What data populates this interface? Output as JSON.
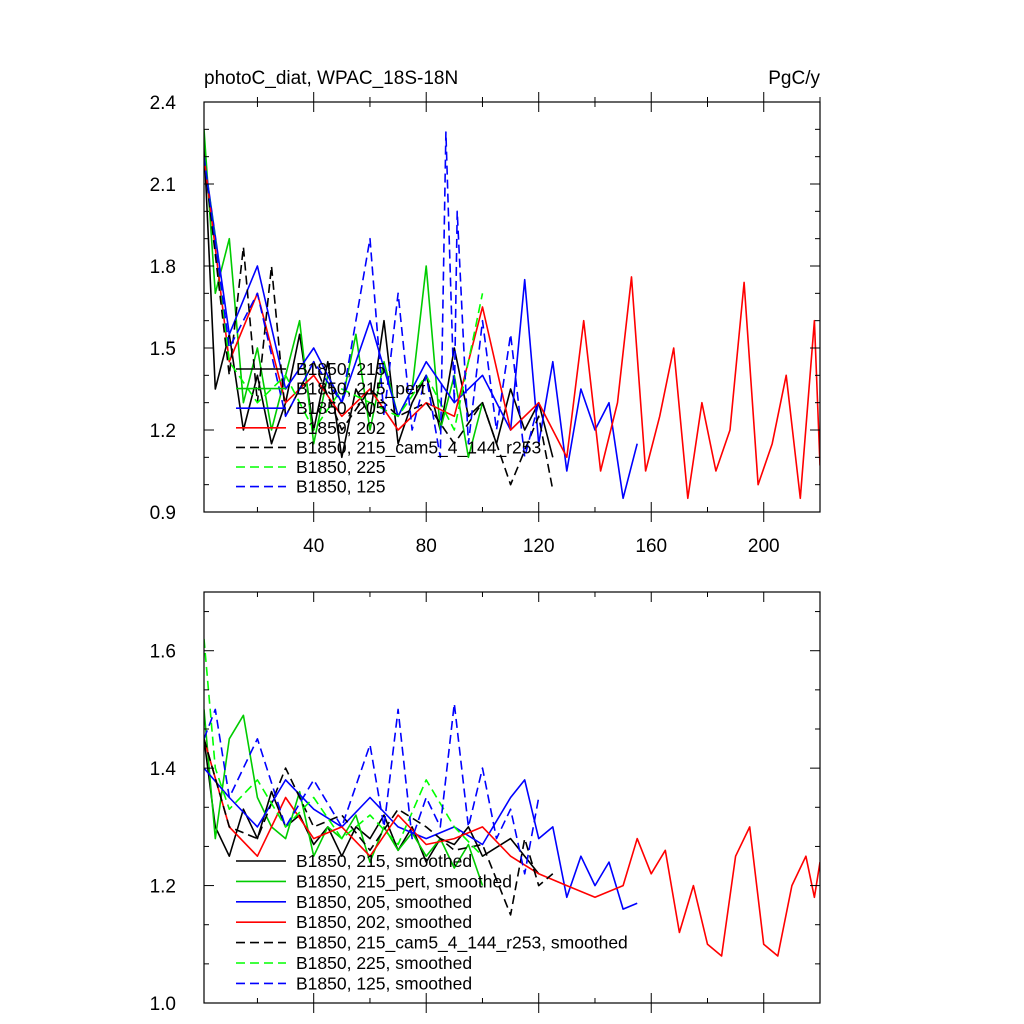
{
  "figure": {
    "title_left": "photoC_diat, WPAC_18S-18N",
    "title_right": "PgC/y"
  },
  "chart_data": [
    {
      "type": "line",
      "panel": "top",
      "title": "photoC_diat, WPAC_18S-18N",
      "units": "PgC/y",
      "xlim": [
        1,
        220
      ],
      "ylim": [
        0.9,
        2.4
      ],
      "yticks": [
        0.9,
        1.2,
        1.5,
        1.8,
        2.1,
        2.4
      ],
      "ytick_labels": [
        "0.9",
        "1.2",
        "1.5",
        "1.8",
        "2.1",
        "2.4"
      ],
      "xticks": [
        40,
        80,
        120,
        160,
        200
      ],
      "xtick_labels": [
        "40",
        "80",
        "120",
        "160",
        "200"
      ],
      "legend_position": "lower-left",
      "series": [
        {
          "name": "B1850, 215",
          "color": "#000000",
          "dash": "solid",
          "x": [
            1,
            5,
            10,
            15,
            20,
            25,
            30,
            35,
            40,
            45,
            50,
            55,
            60,
            65,
            70,
            75,
            80,
            85,
            90,
            95,
            100,
            105,
            110,
            115,
            120,
            125
          ],
          "y": [
            2.25,
            1.35,
            1.55,
            1.2,
            1.4,
            1.15,
            1.3,
            1.55,
            1.2,
            1.45,
            1.1,
            1.35,
            1.25,
            1.6,
            1.15,
            1.3,
            1.4,
            1.2,
            1.5,
            1.25,
            1.3,
            1.15,
            1.35,
            1.2,
            1.3,
            1.1
          ]
        },
        {
          "name": "B1850, 215_pert",
          "color": "#00cc00",
          "dash": "solid",
          "x": [
            1,
            5,
            10,
            15,
            20,
            25,
            30,
            35,
            40,
            45,
            50,
            55,
            60,
            65,
            70,
            75,
            80,
            85,
            90,
            95,
            100
          ],
          "y": [
            2.3,
            1.7,
            1.9,
            1.3,
            1.5,
            1.2,
            1.4,
            1.6,
            1.15,
            1.4,
            1.3,
            1.55,
            1.2,
            1.45,
            1.25,
            1.35,
            1.8,
            1.2,
            1.4,
            1.1,
            1.3
          ]
        },
        {
          "name": "B1850, 205",
          "color": "#0000ff",
          "dash": "solid",
          "x": [
            1,
            10,
            20,
            30,
            40,
            50,
            60,
            70,
            80,
            90,
            100,
            110,
            115,
            120,
            125,
            130,
            135,
            140,
            145,
            150,
            155
          ],
          "y": [
            2.2,
            1.55,
            1.8,
            1.35,
            1.5,
            1.3,
            1.6,
            1.25,
            1.45,
            1.3,
            1.4,
            1.2,
            1.75,
            1.15,
            1.45,
            1.05,
            1.35,
            1.2,
            1.3,
            0.95,
            1.15
          ]
        },
        {
          "name": "B1850, 202",
          "color": "#ff0000",
          "dash": "solid",
          "x": [
            1,
            10,
            20,
            30,
            40,
            50,
            60,
            70,
            80,
            90,
            100,
            110,
            120,
            130,
            136,
            142,
            148,
            153,
            158,
            163,
            168,
            173,
            178,
            183,
            188,
            193,
            198,
            203,
            208,
            213,
            218,
            220
          ],
          "y": [
            2.2,
            1.45,
            1.7,
            1.3,
            1.4,
            1.25,
            1.35,
            1.2,
            1.3,
            1.25,
            1.65,
            1.2,
            1.3,
            1.1,
            1.6,
            1.05,
            1.3,
            1.76,
            1.05,
            1.25,
            1.5,
            0.95,
            1.3,
            1.05,
            1.2,
            1.74,
            1.0,
            1.15,
            1.4,
            0.95,
            1.6,
            1.07
          ]
        },
        {
          "name": "B1850, 215_cam5_4_144_r253",
          "color": "#000000",
          "dash": "dashed",
          "x": [
            1,
            10,
            15,
            20,
            25,
            30,
            40,
            50,
            60,
            70,
            80,
            90,
            100,
            110,
            120,
            125
          ],
          "y": [
            2.2,
            1.4,
            1.87,
            1.3,
            1.8,
            1.25,
            1.45,
            1.2,
            1.35,
            1.25,
            1.3,
            1.15,
            1.3,
            1.0,
            1.25,
            0.98
          ]
        },
        {
          "name": "B1850, 225",
          "color": "#00ff00",
          "dash": "dashed",
          "x": [
            1,
            5,
            10,
            20,
            30,
            40,
            50,
            60,
            70,
            80,
            90,
            100
          ],
          "y": [
            2.2,
            1.9,
            1.45,
            1.3,
            1.4,
            1.2,
            1.35,
            1.3,
            1.25,
            1.4,
            1.2,
            1.7
          ]
        },
        {
          "name": "B1850, 125",
          "color": "#0000ff",
          "dash": "dashed",
          "x": [
            1,
            10,
            20,
            30,
            40,
            50,
            60,
            65,
            70,
            75,
            80,
            85,
            87,
            90,
            91,
            95,
            100,
            105,
            110,
            115,
            120
          ],
          "y": [
            2.2,
            1.5,
            1.7,
            1.25,
            1.45,
            1.3,
            1.9,
            1.25,
            1.7,
            1.2,
            1.4,
            1.1,
            2.29,
            1.3,
            2.0,
            1.15,
            1.6,
            1.2,
            1.55,
            1.1,
            1.3
          ]
        }
      ]
    },
    {
      "type": "line",
      "panel": "bottom",
      "xlim": [
        1,
        220
      ],
      "ylim": [
        1.0,
        1.7
      ],
      "yticks": [
        1.0,
        1.2,
        1.4,
        1.6
      ],
      "ytick_labels": [
        "1.0",
        "1.2",
        "1.4",
        "1.6"
      ],
      "xticks": [
        40,
        80,
        120,
        160,
        200
      ],
      "legend_position": "lower-left",
      "series": [
        {
          "name": "B1850, 215, smoothed",
          "color": "#000000",
          "dash": "solid",
          "x": [
            1,
            5,
            10,
            15,
            20,
            25,
            30,
            35,
            40,
            45,
            50,
            55,
            60,
            65,
            70,
            75,
            80,
            85,
            90,
            95,
            100,
            110,
            120
          ],
          "y": [
            1.45,
            1.3,
            1.25,
            1.33,
            1.28,
            1.36,
            1.3,
            1.32,
            1.27,
            1.3,
            1.25,
            1.3,
            1.28,
            1.32,
            1.26,
            1.3,
            1.24,
            1.28,
            1.27,
            1.3,
            1.25,
            1.28,
            1.22
          ]
        },
        {
          "name": "B1850, 215_pert, smoothed",
          "color": "#00cc00",
          "dash": "solid",
          "x": [
            1,
            5,
            10,
            15,
            20,
            25,
            30,
            35,
            40,
            45,
            50,
            55,
            60,
            65,
            70,
            75,
            80,
            85,
            90,
            95,
            100
          ],
          "y": [
            1.5,
            1.28,
            1.45,
            1.49,
            1.35,
            1.3,
            1.28,
            1.36,
            1.25,
            1.3,
            1.28,
            1.32,
            1.24,
            1.3,
            1.26,
            1.29,
            1.25,
            1.28,
            1.23,
            1.27,
            1.2
          ]
        },
        {
          "name": "B1850, 205, smoothed",
          "color": "#0000ff",
          "dash": "solid",
          "x": [
            1,
            10,
            20,
            30,
            40,
            50,
            60,
            70,
            80,
            90,
            100,
            110,
            115,
            120,
            125,
            130,
            135,
            140,
            145,
            150,
            155
          ],
          "y": [
            1.4,
            1.35,
            1.3,
            1.38,
            1.33,
            1.3,
            1.35,
            1.3,
            1.28,
            1.3,
            1.27,
            1.35,
            1.38,
            1.28,
            1.3,
            1.18,
            1.25,
            1.2,
            1.24,
            1.16,
            1.17
          ]
        },
        {
          "name": "B1850, 202, smoothed",
          "color": "#ff0000",
          "dash": "solid",
          "x": [
            1,
            10,
            20,
            30,
            40,
            50,
            60,
            70,
            80,
            90,
            100,
            110,
            120,
            130,
            140,
            150,
            155,
            160,
            165,
            170,
            175,
            180,
            185,
            190,
            195,
            200,
            205,
            210,
            215,
            218,
            220
          ],
          "y": [
            1.45,
            1.3,
            1.25,
            1.35,
            1.28,
            1.3,
            1.25,
            1.32,
            1.27,
            1.28,
            1.3,
            1.25,
            1.22,
            1.2,
            1.18,
            1.2,
            1.28,
            1.22,
            1.26,
            1.12,
            1.2,
            1.1,
            1.08,
            1.25,
            1.3,
            1.1,
            1.08,
            1.2,
            1.25,
            1.18,
            1.24
          ]
        },
        {
          "name": "B1850, 215_cam5_4_144_r253, smoothed",
          "color": "#000000",
          "dash": "dashed",
          "x": [
            1,
            10,
            20,
            30,
            40,
            50,
            60,
            70,
            80,
            90,
            100,
            110,
            115,
            120,
            125
          ],
          "y": [
            1.45,
            1.3,
            1.28,
            1.4,
            1.3,
            1.32,
            1.26,
            1.33,
            1.3,
            1.26,
            1.27,
            1.15,
            1.28,
            1.2,
            1.22
          ]
        },
        {
          "name": "B1850, 225, smoothed",
          "color": "#00ff00",
          "dash": "dashed",
          "x": [
            1,
            5,
            10,
            20,
            30,
            40,
            50,
            60,
            70,
            80,
            90,
            100
          ],
          "y": [
            1.62,
            1.4,
            1.33,
            1.38,
            1.3,
            1.35,
            1.28,
            1.32,
            1.27,
            1.38,
            1.3,
            1.25
          ]
        },
        {
          "name": "B1850, 125, smoothed",
          "color": "#0000ff",
          "dash": "dashed",
          "x": [
            1,
            5,
            10,
            20,
            30,
            40,
            50,
            60,
            65,
            70,
            75,
            80,
            85,
            90,
            95,
            100,
            105,
            110,
            115,
            120
          ],
          "y": [
            1.45,
            1.5,
            1.35,
            1.45,
            1.3,
            1.38,
            1.3,
            1.44,
            1.3,
            1.5,
            1.28,
            1.35,
            1.3,
            1.51,
            1.3,
            1.4,
            1.28,
            1.33,
            1.22,
            1.35
          ]
        }
      ]
    }
  ]
}
